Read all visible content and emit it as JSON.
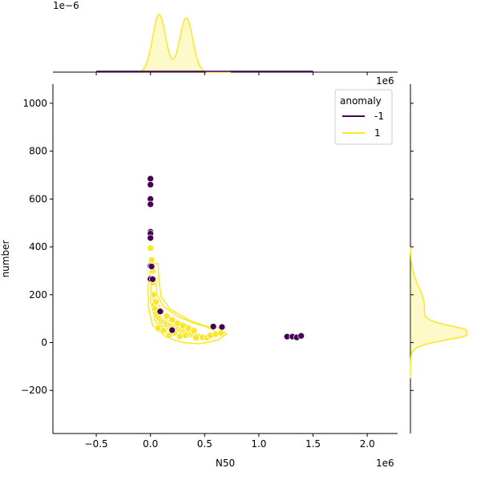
{
  "chart_data": {
    "type": "scatter",
    "title": "",
    "xlabel": "N50",
    "ylabel": "number",
    "x_scale_note": "1e6",
    "y_top_marginal_note": "1e−6",
    "y_right_marginal_note": "1e6",
    "xlim": [
      -0.9,
      2.28
    ],
    "ylim": [
      -380,
      1080
    ],
    "x_ticks": [
      -0.5,
      0.0,
      0.5,
      1.0,
      1.5,
      2.0
    ],
    "x_tick_labels": [
      "−0.5",
      "0.0",
      "0.5",
      "1.0",
      "1.5",
      "2.0"
    ],
    "y_ticks": [
      -200,
      0,
      200,
      400,
      600,
      800,
      1000
    ],
    "y_tick_labels": [
      "−200",
      "0",
      "200",
      "400",
      "600",
      "800",
      "1000"
    ],
    "legend": {
      "title": "anomaly",
      "placement": "upper-right",
      "entries": [
        {
          "label": "-1",
          "color": "#440154"
        },
        {
          "label": "1",
          "color": "#fde725"
        }
      ]
    },
    "series": [
      {
        "name": "-1",
        "color": "#440154",
        "x": [
          0.0,
          0.0,
          0.0,
          0.0,
          0.0,
          0.0,
          0.0,
          0.0,
          0.0,
          0.01,
          0.02,
          0.09,
          0.2,
          0.58,
          0.66,
          1.26,
          1.31,
          1.35,
          1.39
        ],
        "y": [
          685,
          660,
          600,
          578,
          463,
          455,
          437,
          320,
          266,
          318,
          265,
          130,
          52,
          67,
          65,
          25,
          25,
          22,
          28
        ]
      },
      {
        "name": "1",
        "color": "#fde725",
        "x": [
          0.0,
          0.01,
          0.02,
          0.02,
          0.03,
          0.03,
          0.04,
          0.05,
          0.06,
          0.08,
          0.1,
          0.12,
          0.14,
          0.15,
          0.18,
          0.2,
          0.22,
          0.25,
          0.28,
          0.3,
          0.32,
          0.34,
          0.36,
          0.38,
          0.4,
          0.42,
          0.45,
          0.48,
          0.52,
          0.55,
          0.6,
          0.65,
          0.05,
          0.1,
          0.15,
          0.2,
          0.25,
          0.3,
          0.35,
          0.4,
          0.12,
          0.22,
          0.32,
          0.42,
          0.07,
          0.17,
          0.27
        ],
        "y": [
          395,
          345,
          300,
          250,
          200,
          160,
          140,
          120,
          110,
          100,
          90,
          85,
          80,
          75,
          70,
          65,
          60,
          55,
          50,
          45,
          40,
          38,
          35,
          32,
          30,
          28,
          25,
          22,
          20,
          30,
          35,
          40,
          170,
          130,
          110,
          95,
          80,
          70,
          60,
          50,
          50,
          40,
          30,
          20,
          60,
          30,
          25
        ]
      }
    ],
    "contours_note": "kde contours for class 1",
    "top_marginal": {
      "series_1_peaks_x": [
        0.08,
        0.33
      ],
      "series_1_peak_heights": [
        1.0,
        0.94
      ]
    },
    "right_marginal": {
      "series_1_peak_y": 40
    }
  }
}
